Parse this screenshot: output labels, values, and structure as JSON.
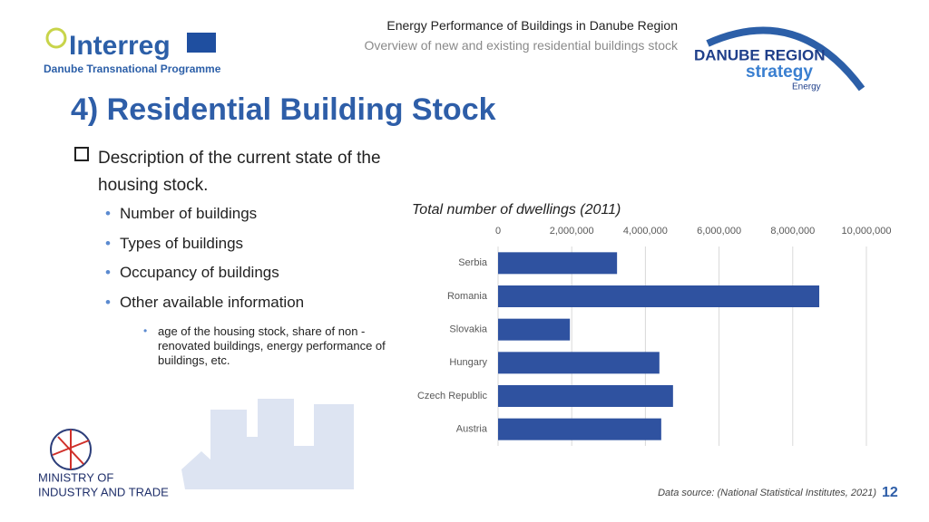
{
  "header": {
    "line1": "Energy Performance of Buildings in Danube Region",
    "line2": "Overview of new and existing residential buildings stock"
  },
  "logos": {
    "interreg": "Interreg",
    "programme": "Danube Transnational Programme",
    "danube_region": "DANUBE REGION",
    "strategy": "strategy",
    "energy": "Energy",
    "ministry_1": "MINISTRY OF",
    "ministry_2": "INDUSTRY AND TRADE"
  },
  "title": "4) Residential Building Stock",
  "bullets": {
    "main": "Description of the current state of the housing stock.",
    "items": [
      "Number of buildings",
      "Types of buildings",
      "Occupancy of buildings",
      "Other available information"
    ],
    "sub": "age of the housing stock, share of non - renovated buildings, energy performance of buildings, etc."
  },
  "chart_data": {
    "type": "bar",
    "orientation": "horizontal",
    "title": "Total number of dwellings (2011)",
    "categories": [
      "Serbia",
      "Romania",
      "Slovakia",
      "Hungary",
      "Czech Republic",
      "Austria"
    ],
    "values": [
      3230000,
      8720000,
      1950000,
      4380000,
      4750000,
      4430000
    ],
    "color": "#2f52a0",
    "xlim": [
      0,
      10000000
    ],
    "xticks": [
      0,
      {
        "value": 2000000,
        "label": "2,000,000"
      },
      {
        "value": 4000000,
        "label": "4,000,000"
      },
      {
        "value": 6000000,
        "label": "6,000,000"
      },
      {
        "value": 8000000,
        "label": "8,000,000"
      },
      {
        "value": 10000000,
        "label": "10,000,000"
      }
    ],
    "grid": true
  },
  "footer": {
    "source": "Data source: (National Statistical Institutes, 2021)",
    "page": 12
  }
}
